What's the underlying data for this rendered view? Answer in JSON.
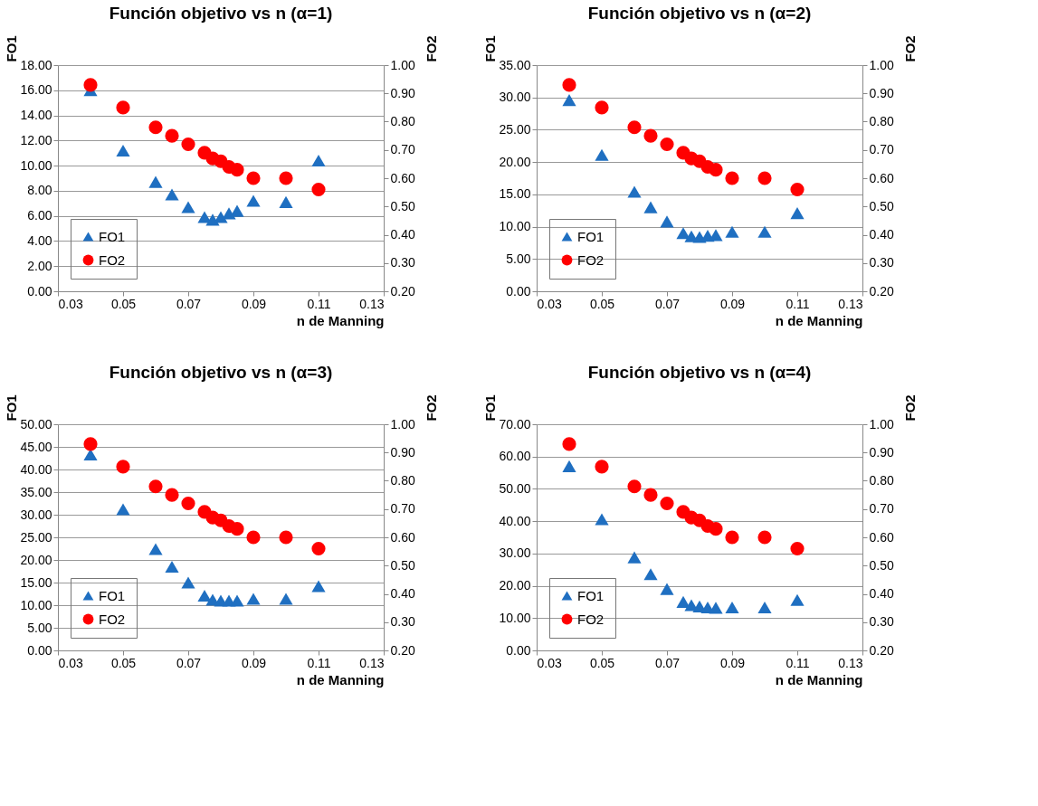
{
  "chart_data": [
    {
      "type": "scatter",
      "title": "Función objetivo vs n (α=1)",
      "xlabel": "n de Manning",
      "ylabel": "FO1",
      "y2label": "FO2",
      "x": [
        0.04,
        0.05,
        0.06,
        0.065,
        0.07,
        0.075,
        0.0775,
        0.08,
        0.0825,
        0.085,
        0.09,
        0.1,
        0.11
      ],
      "series": [
        {
          "name": "FO1",
          "color": "#1f6fc1",
          "marker": "triangle",
          "values": [
            16.0,
            11.2,
            8.7,
            7.7,
            6.7,
            5.9,
            5.7,
            5.9,
            6.2,
            6.4,
            7.2,
            7.1,
            10.4
          ]
        },
        {
          "name": "FO2",
          "color": "#ff0000",
          "marker": "circle",
          "axis": "y2",
          "values": [
            0.93,
            0.85,
            0.78,
            0.75,
            0.72,
            0.69,
            0.67,
            0.66,
            0.64,
            0.63,
            0.6,
            0.6,
            0.56
          ]
        }
      ],
      "xlim": [
        0.03,
        0.13
      ],
      "xticks": [
        0.03,
        0.05,
        0.07,
        0.09,
        0.11,
        0.13
      ],
      "ylim": [
        0,
        18
      ],
      "yticks": [
        {
          "value": 0,
          "label": "0.00"
        },
        {
          "value": 2,
          "label": "2.00"
        },
        {
          "value": 4,
          "label": "4.00"
        },
        {
          "value": 6,
          "label": "6.00"
        },
        {
          "value": 8,
          "label": "8.00"
        },
        {
          "value": 10,
          "label": "10.00"
        },
        {
          "value": 12,
          "label": "12.00"
        },
        {
          "value": 14,
          "label": "14.00"
        },
        {
          "value": 16,
          "label": "16.00"
        },
        {
          "value": 18,
          "label": "18.00"
        }
      ],
      "y2lim": [
        0.2,
        1.0
      ],
      "y2ticks": [
        {
          "value": 0.2,
          "label": "0.20"
        },
        {
          "value": 0.3,
          "label": "0.30"
        },
        {
          "value": 0.4,
          "label": "0.40"
        },
        {
          "value": 0.5,
          "label": "0.50"
        },
        {
          "value": 0.6,
          "label": "0.60"
        },
        {
          "value": 0.7,
          "label": "0.70"
        },
        {
          "value": 0.8,
          "label": "0.80"
        },
        {
          "value": 0.9,
          "label": "0.90"
        },
        {
          "value": 1.0,
          "label": "1.00"
        }
      ],
      "grid": "y",
      "legend": "bottom left"
    },
    {
      "type": "scatter",
      "title": "Función objetivo vs n (α=2)",
      "xlabel": "n de Manning",
      "ylabel": "FO1",
      "y2label": "FO2",
      "x": [
        0.04,
        0.05,
        0.06,
        0.065,
        0.07,
        0.075,
        0.0775,
        0.08,
        0.0825,
        0.085,
        0.09,
        0.1,
        0.11
      ],
      "series": [
        {
          "name": "FO1",
          "color": "#1f6fc1",
          "marker": "triangle",
          "values": [
            29.6,
            21.1,
            15.4,
            13.0,
            10.8,
            9.0,
            8.5,
            8.4,
            8.6,
            8.7,
            9.2,
            9.2,
            12.1
          ]
        },
        {
          "name": "FO2",
          "color": "#ff0000",
          "marker": "circle",
          "axis": "y2",
          "values": [
            0.93,
            0.85,
            0.78,
            0.75,
            0.72,
            0.69,
            0.67,
            0.66,
            0.64,
            0.63,
            0.6,
            0.6,
            0.56
          ]
        }
      ],
      "xlim": [
        0.03,
        0.13
      ],
      "xticks": [
        0.03,
        0.05,
        0.07,
        0.09,
        0.11,
        0.13
      ],
      "ylim": [
        0,
        35
      ],
      "yticks": [
        {
          "value": 0,
          "label": "0.00"
        },
        {
          "value": 5,
          "label": "5.00"
        },
        {
          "value": 10,
          "label": "10.00"
        },
        {
          "value": 15,
          "label": "15.00"
        },
        {
          "value": 20,
          "label": "20.00"
        },
        {
          "value": 25,
          "label": "25.00"
        },
        {
          "value": 30,
          "label": "30.00"
        },
        {
          "value": 35,
          "label": "35.00"
        }
      ],
      "y2lim": [
        0.2,
        1.0
      ],
      "y2ticks": [
        {
          "value": 0.2,
          "label": "0.20"
        },
        {
          "value": 0.3,
          "label": "0.30"
        },
        {
          "value": 0.4,
          "label": "0.40"
        },
        {
          "value": 0.5,
          "label": "0.50"
        },
        {
          "value": 0.6,
          "label": "0.60"
        },
        {
          "value": 0.7,
          "label": "0.70"
        },
        {
          "value": 0.8,
          "label": "0.80"
        },
        {
          "value": 0.9,
          "label": "0.90"
        },
        {
          "value": 1.0,
          "label": "1.00"
        }
      ],
      "grid": "y",
      "legend": "bottom left"
    },
    {
      "type": "scatter",
      "title": "Función objetivo vs n (α=3)",
      "xlabel": "n de Manning",
      "ylabel": "FO1",
      "y2label": "FO2",
      "x": [
        0.04,
        0.05,
        0.06,
        0.065,
        0.07,
        0.075,
        0.0775,
        0.08,
        0.0825,
        0.085,
        0.09,
        0.1,
        0.11
      ],
      "series": [
        {
          "name": "FO1",
          "color": "#1f6fc1",
          "marker": "triangle",
          "values": [
            43.3,
            31.2,
            22.4,
            18.5,
            15.0,
            12.1,
            11.2,
            11.0,
            11.0,
            11.0,
            11.4,
            11.4,
            14.2
          ]
        },
        {
          "name": "FO2",
          "color": "#ff0000",
          "marker": "circle",
          "axis": "y2",
          "values": [
            0.93,
            0.85,
            0.78,
            0.75,
            0.72,
            0.69,
            0.67,
            0.66,
            0.64,
            0.63,
            0.6,
            0.6,
            0.56
          ]
        }
      ],
      "xlim": [
        0.03,
        0.13
      ],
      "xticks": [
        0.03,
        0.05,
        0.07,
        0.09,
        0.11,
        0.13
      ],
      "ylim": [
        0,
        50
      ],
      "yticks": [
        {
          "value": 0,
          "label": "0.00"
        },
        {
          "value": 5,
          "label": "5.00"
        },
        {
          "value": 10,
          "label": "10.00"
        },
        {
          "value": 15,
          "label": "15.00"
        },
        {
          "value": 20,
          "label": "20.00"
        },
        {
          "value": 25,
          "label": "25.00"
        },
        {
          "value": 30,
          "label": "30.00"
        },
        {
          "value": 35,
          "label": "35.00"
        },
        {
          "value": 40,
          "label": "40.00"
        },
        {
          "value": 45,
          "label": "45.00"
        },
        {
          "value": 50,
          "label": "50.00"
        }
      ],
      "y2lim": [
        0.2,
        1.0
      ],
      "y2ticks": [
        {
          "value": 0.2,
          "label": "0.20"
        },
        {
          "value": 0.3,
          "label": "0.30"
        },
        {
          "value": 0.4,
          "label": "0.40"
        },
        {
          "value": 0.5,
          "label": "0.50"
        },
        {
          "value": 0.6,
          "label": "0.60"
        },
        {
          "value": 0.7,
          "label": "0.70"
        },
        {
          "value": 0.8,
          "label": "0.80"
        },
        {
          "value": 0.9,
          "label": "0.90"
        },
        {
          "value": 1.0,
          "label": "1.00"
        }
      ],
      "grid": "y",
      "legend": "bottom left"
    },
    {
      "type": "scatter",
      "title": "Función objetivo vs n (α=4)",
      "xlabel": "n de Manning",
      "ylabel": "FO1",
      "y2label": "FO2",
      "x": [
        0.04,
        0.05,
        0.06,
        0.065,
        0.07,
        0.075,
        0.0775,
        0.08,
        0.0825,
        0.085,
        0.09,
        0.1,
        0.11
      ],
      "series": [
        {
          "name": "FO1",
          "color": "#1f6fc1",
          "marker": "triangle",
          "values": [
            57.0,
            40.6,
            28.8,
            23.6,
            19.0,
            15.0,
            14.0,
            13.6,
            13.3,
            13.2,
            13.3,
            13.3,
            15.6
          ]
        },
        {
          "name": "FO2",
          "color": "#ff0000",
          "marker": "circle",
          "axis": "y2",
          "values": [
            0.93,
            0.85,
            0.78,
            0.75,
            0.72,
            0.69,
            0.67,
            0.66,
            0.64,
            0.63,
            0.6,
            0.6,
            0.56
          ]
        }
      ],
      "xlim": [
        0.03,
        0.13
      ],
      "xticks": [
        0.03,
        0.05,
        0.07,
        0.09,
        0.11,
        0.13
      ],
      "ylim": [
        0,
        70
      ],
      "yticks": [
        {
          "value": 0,
          "label": "0.00"
        },
        {
          "value": 10,
          "label": "10.00"
        },
        {
          "value": 20,
          "label": "20.00"
        },
        {
          "value": 30,
          "label": "30.00"
        },
        {
          "value": 40,
          "label": "40.00"
        },
        {
          "value": 50,
          "label": "50.00"
        },
        {
          "value": 60,
          "label": "60.00"
        },
        {
          "value": 70,
          "label": "70.00"
        }
      ],
      "y2lim": [
        0.2,
        1.0
      ],
      "y2ticks": [
        {
          "value": 0.2,
          "label": "0.20"
        },
        {
          "value": 0.3,
          "label": "0.30"
        },
        {
          "value": 0.4,
          "label": "0.40"
        },
        {
          "value": 0.5,
          "label": "0.50"
        },
        {
          "value": 0.6,
          "label": "0.60"
        },
        {
          "value": 0.7,
          "label": "0.70"
        },
        {
          "value": 0.8,
          "label": "0.80"
        },
        {
          "value": 0.9,
          "label": "0.90"
        },
        {
          "value": 1.0,
          "label": "1.00"
        }
      ],
      "grid": "y",
      "legend": "bottom left"
    }
  ]
}
